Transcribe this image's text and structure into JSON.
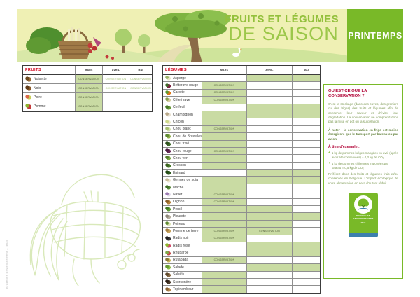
{
  "page": {
    "title_line1": "FRUITS ET LÉGUMES",
    "title_line2": "DE SAISON",
    "season_badge": "PRINTEMPS",
    "side_credit": "Bruxelles Environnement – IBGE"
  },
  "colors": {
    "banner_bg": "#eff0b4",
    "accent_green": "#79b928",
    "season_cell_green": "#c9dba3",
    "table_title_red": "#d10019",
    "panel_title_red": "#b00034"
  },
  "conservation_label": "CONSERVATION",
  "fruits_table": {
    "title": "FRUITS",
    "months": [
      "MARS",
      "AVRIL",
      "MAI"
    ],
    "rows": [
      {
        "name": "Noisette",
        "icon": "hazelnut-icon",
        "cells": [
          "C",
          "CL",
          "CL"
        ]
      },
      {
        "name": "Noix",
        "icon": "walnut-icon",
        "cells": [
          "C",
          "CL",
          "CL"
        ]
      },
      {
        "name": "Poire",
        "icon": "pear-icon",
        "cells": [
          "C",
          "",
          ""
        ]
      },
      {
        "name": "Pomme",
        "icon": "apple-icon",
        "cells": [
          "C",
          "",
          ""
        ]
      }
    ]
  },
  "vegetables_table": {
    "title": "LÉGUMES",
    "months": [
      "MARS",
      "AVRIL",
      "MAI"
    ],
    "rows": [
      {
        "name": "Asperge",
        "icon": "asparagus-icon",
        "cells": [
          "",
          "G",
          "G"
        ]
      },
      {
        "name": "Betterave rouge",
        "icon": "beetroot-icon",
        "cells": [
          "C",
          "",
          ""
        ]
      },
      {
        "name": "Carotte",
        "icon": "carrot-icon",
        "cells": [
          "C",
          "",
          ""
        ]
      },
      {
        "name": "Céleri rave",
        "icon": "celeriac-icon",
        "cells": [
          "C",
          "",
          ""
        ]
      },
      {
        "name": "Cerfeuil",
        "icon": "chervil-icon",
        "cells": [
          "",
          "G",
          "G"
        ]
      },
      {
        "name": "Champignon",
        "icon": "mushroom-icon",
        "cells": [
          "G",
          "G",
          "G"
        ]
      },
      {
        "name": "Chicon",
        "icon": "endive-icon",
        "cells": [
          "G",
          "",
          ""
        ]
      },
      {
        "name": "Chou blanc",
        "icon": "white-cabbage-icon",
        "cells": [
          "C",
          "",
          ""
        ]
      },
      {
        "name": "Chou de Bruxelles",
        "icon": "brussels-sprouts-icon",
        "cells": [
          "G",
          "",
          ""
        ]
      },
      {
        "name": "Chou frisé",
        "icon": "kale-icon",
        "cells": [
          "G",
          "",
          ""
        ]
      },
      {
        "name": "Chou rouge",
        "icon": "red-cabbage-icon",
        "cells": [
          "C",
          "",
          ""
        ]
      },
      {
        "name": "Chou vert",
        "icon": "green-cabbage-icon",
        "cells": [
          "G",
          "",
          ""
        ]
      },
      {
        "name": "Cresson",
        "icon": "watercress-icon",
        "cells": [
          "G",
          "",
          ""
        ]
      },
      {
        "name": "Épinard",
        "icon": "spinach-icon",
        "cells": [
          "",
          "G",
          "G"
        ]
      },
      {
        "name": "Germes de soja",
        "icon": "bean-sprouts-icon",
        "cells": [
          "G",
          "G",
          "G"
        ]
      },
      {
        "name": "Mâche",
        "icon": "lambs-lettuce-icon",
        "cells": [
          "G",
          "",
          ""
        ]
      },
      {
        "name": "Navet",
        "icon": "turnip-icon",
        "cells": [
          "C",
          "",
          ""
        ]
      },
      {
        "name": "Oignon",
        "icon": "onion-icon",
        "cells": [
          "C",
          "",
          ""
        ]
      },
      {
        "name": "Persil",
        "icon": "parsley-icon",
        "cells": [
          "G",
          "G",
          ""
        ]
      },
      {
        "name": "Pleurote",
        "icon": "oyster-mushroom-icon",
        "cells": [
          "G",
          "G",
          "G"
        ]
      },
      {
        "name": "Poireau",
        "icon": "leek-icon",
        "cells": [
          "G",
          "G",
          ""
        ]
      },
      {
        "name": "Pomme de terre",
        "icon": "potato-icon",
        "cells": [
          "C",
          "C",
          ""
        ]
      },
      {
        "name": "Radis noir",
        "icon": "black-radish-icon",
        "cells": [
          "C",
          "",
          ""
        ]
      },
      {
        "name": "Radis rose",
        "icon": "pink-radish-icon",
        "cells": [
          "",
          "G",
          "G"
        ]
      },
      {
        "name": "Rhubarbe",
        "icon": "rhubarb-icon",
        "cells": [
          "",
          "G",
          "G"
        ]
      },
      {
        "name": "Rutabaga",
        "icon": "rutabaga-icon",
        "cells": [
          "C",
          "",
          ""
        ]
      },
      {
        "name": "Salade",
        "icon": "lettuce-icon",
        "cells": [
          "",
          "G",
          "G"
        ]
      },
      {
        "name": "Salsifis",
        "icon": "salsify-icon",
        "cells": [
          "G",
          "",
          ""
        ]
      },
      {
        "name": "Scorsonère",
        "icon": "scorzonera-icon",
        "cells": [
          "G",
          "",
          ""
        ]
      },
      {
        "name": "Topinambour",
        "icon": "jerusalem-artichoke-icon",
        "cells": [
          "G",
          "",
          ""
        ]
      }
    ]
  },
  "info_panel": {
    "title": "QU'EST-CE QUE LA CONSERVATION ?",
    "intro": "C'est le stockage (dans des caves, des greniers ou des frigos) des fruits et légumes afin de conserver leur saveur et d'éviter leur dégradation. La conservation ne comprend donc pas la mise en pot ou la surgélation.",
    "note": "À noter : la conservation en frigo est moins énergivore que le transport par bateau ou par avion.",
    "example_title": "À titre d'exemple :",
    "bullets": [
      "1 kg de pommes belges mangées en avril (après avoir été conservées) = 0,3 kg de CO₂",
      "1 kg de pommes chiliennes importées par bateau = 0,5 kg de CO₂"
    ],
    "outro": "Préférez donc des fruits et légumes frais et/ou conservés en Belgique. L'impact écologique de votre alimentation en sera d'autant réduit.",
    "logo": {
      "line1": "BRUXELLES",
      "line2": "ENVIRONNEMENT",
      "line3": "· IBGE ·"
    }
  }
}
